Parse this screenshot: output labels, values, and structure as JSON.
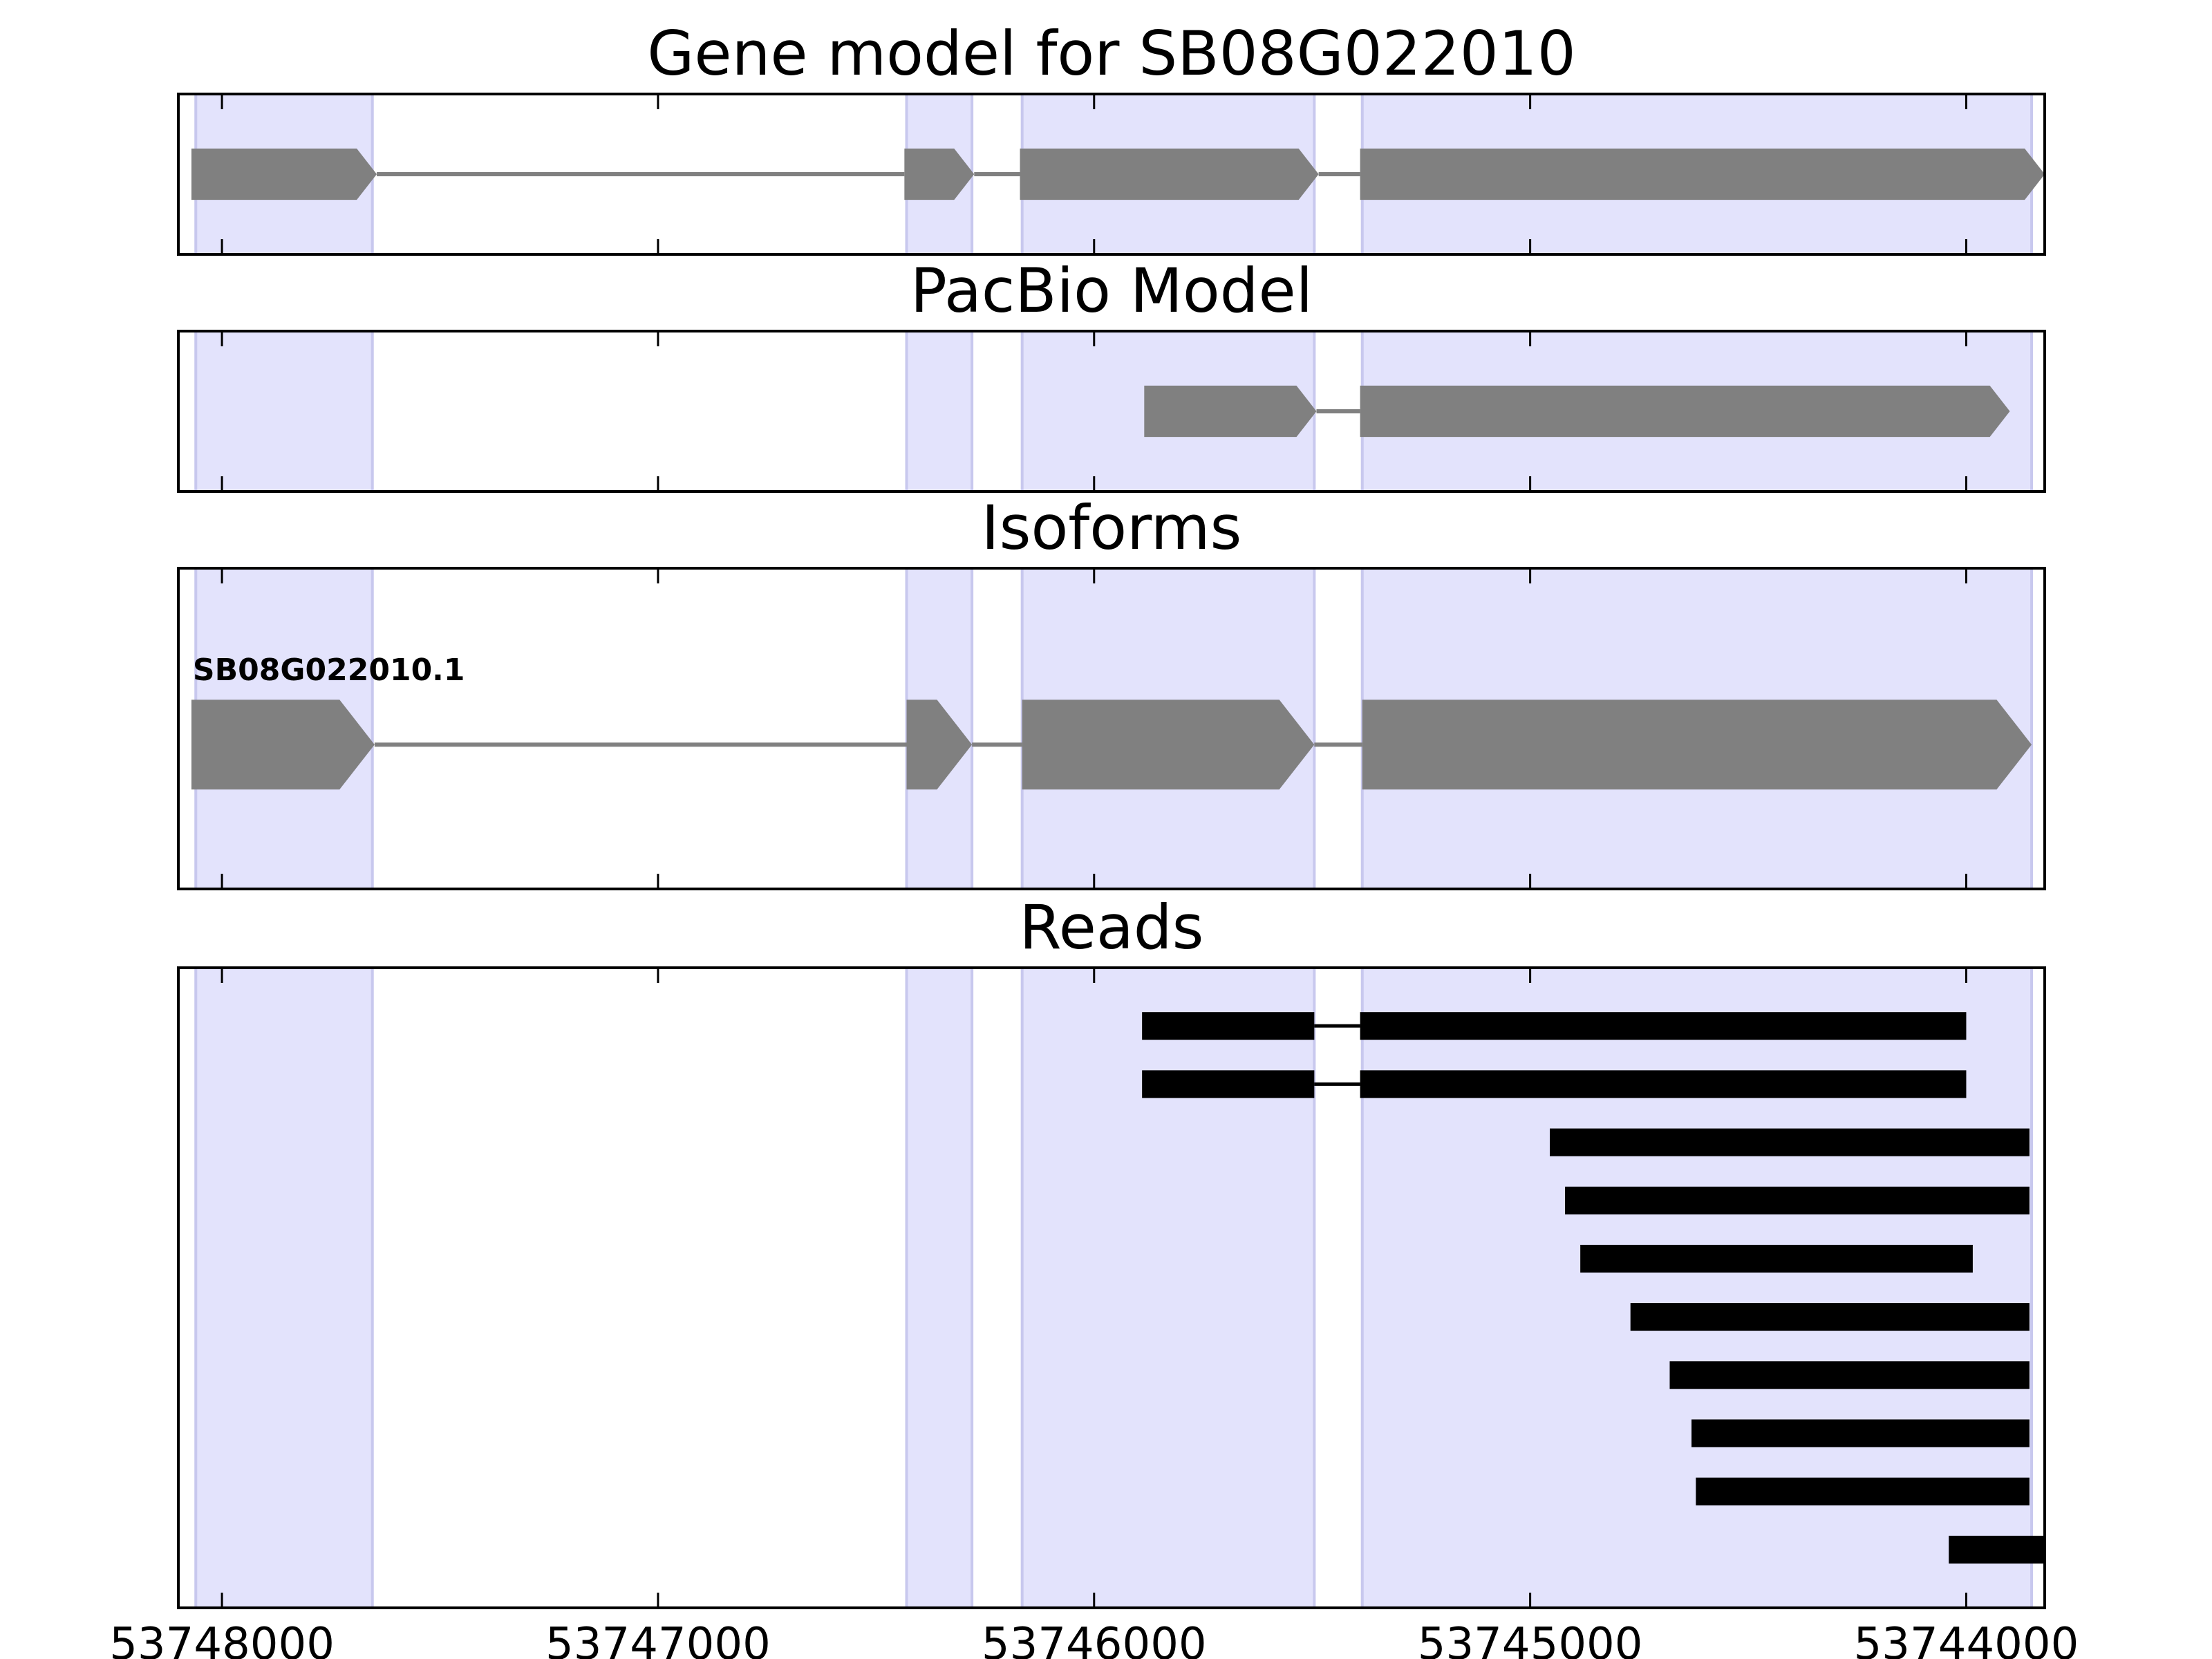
{
  "chart_data": {
    "type": "gene-track",
    "x_axis": {
      "reversed": true,
      "xlim": [
        53748100,
        53743820
      ],
      "ticks": [
        {
          "value": 53748000,
          "label": "53748000"
        },
        {
          "value": 53747000,
          "label": "53747000"
        },
        {
          "value": 53746000,
          "label": "53746000"
        },
        {
          "value": 53745000,
          "label": "53745000"
        },
        {
          "value": 53744000,
          "label": "53744000"
        }
      ]
    },
    "colors": {
      "exon_highlight": "#e3e3fc",
      "exon_highlight_edge": "#c8c8ee",
      "feature": "#808080",
      "read": "#000000",
      "axes": "#000000"
    },
    "exon_regions": [
      [
        53748060,
        53747655
      ],
      [
        53746430,
        53746280
      ],
      [
        53746165,
        53745495
      ],
      [
        53745385,
        53743850
      ]
    ],
    "panels": [
      {
        "title": "Gene model for SB08G022010",
        "kind": "model",
        "ylim": [
          0,
          1
        ],
        "tracks": [
          {
            "y": 0.5,
            "height": 0.32,
            "label": "",
            "exons": [
              [
                53748070,
                53747645
              ],
              [
                53746435,
                53746275
              ],
              [
                53746170,
                53745485
              ],
              [
                53745390,
                53743820
              ]
            ]
          }
        ]
      },
      {
        "title": "PacBio Model",
        "kind": "model",
        "ylim": [
          0,
          1
        ],
        "tracks": [
          {
            "y": 0.5,
            "height": 0.32,
            "label": "",
            "exons": [
              [
                53745885,
                53745490
              ],
              [
                53745390,
                53743900
              ]
            ]
          }
        ]
      },
      {
        "title": "Isoforms",
        "kind": "model",
        "ylim": [
          0,
          1
        ],
        "tracks": [
          {
            "y": 0.45,
            "height": 0.28,
            "label": "SB08G022010.1",
            "exons": [
              [
                53748070,
                53747650
              ],
              [
                53746430,
                53746280
              ],
              [
                53746165,
                53745495
              ],
              [
                53745385,
                53743850
              ]
            ]
          }
        ]
      },
      {
        "title": "Reads",
        "kind": "reads",
        "ylim": [
          0,
          11
        ],
        "tracks": [
          {
            "y": 10,
            "exons": [
              [
                53745890,
                53745495
              ],
              [
                53745390,
                53744000
              ]
            ]
          },
          {
            "y": 9,
            "exons": [
              [
                53745890,
                53745495
              ],
              [
                53745390,
                53744000
              ]
            ]
          },
          {
            "y": 8,
            "exons": [
              [
                53744955,
                53743855
              ]
            ]
          },
          {
            "y": 7,
            "exons": [
              [
                53744920,
                53743855
              ]
            ]
          },
          {
            "y": 6,
            "exons": [
              [
                53744885,
                53743985
              ]
            ]
          },
          {
            "y": 5,
            "exons": [
              [
                53744770,
                53743855
              ]
            ]
          },
          {
            "y": 4,
            "exons": [
              [
                53744680,
                53743855
              ]
            ]
          },
          {
            "y": 3,
            "exons": [
              [
                53744630,
                53743855
              ]
            ]
          },
          {
            "y": 2,
            "exons": [
              [
                53744620,
                53743855
              ]
            ]
          },
          {
            "y": 1,
            "exons": [
              [
                53744040,
                53743820
              ]
            ]
          }
        ]
      }
    ]
  }
}
